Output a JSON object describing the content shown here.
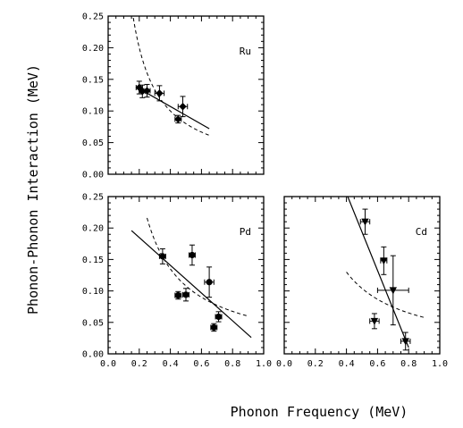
{
  "figure": {
    "ylabel": "Phonon-Phonon Interaction (MeV)",
    "xlabel": "Phonon Frequency (MeV)"
  },
  "chart_data": [
    {
      "type": "scatter",
      "label": "Ru",
      "marker": "diamond",
      "xlim": [
        0.0,
        1.0
      ],
      "ylim": [
        0.0,
        0.25
      ],
      "xticks": [],
      "yticks": [
        "0.00",
        "0.05",
        "0.10",
        "0.15",
        "0.20",
        "0.25"
      ],
      "points": [
        {
          "x": 0.2,
          "y": 0.137,
          "xerr": 0.02,
          "yerr": 0.01
        },
        {
          "x": 0.22,
          "y": 0.131,
          "xerr": 0.02,
          "yerr": 0.01
        },
        {
          "x": 0.25,
          "y": 0.132,
          "xerr": 0.02,
          "yerr": 0.01
        },
        {
          "x": 0.33,
          "y": 0.128,
          "xerr": 0.03,
          "yerr": 0.012
        },
        {
          "x": 0.45,
          "y": 0.087,
          "xerr": 0.02,
          "yerr": 0.006
        },
        {
          "x": 0.48,
          "y": 0.107,
          "xerr": 0.03,
          "yerr": 0.016
        }
      ],
      "fit_line": {
        "x": [
          0.18,
          0.65
        ],
        "y": [
          0.138,
          0.072
        ]
      },
      "dashed_curve": {
        "k": 0.04,
        "x_range": [
          0.15,
          0.65
        ]
      }
    },
    {
      "type": "scatter",
      "label": "Pd",
      "marker": "circle",
      "xlim": [
        0.0,
        1.0
      ],
      "ylim": [
        0.0,
        0.25
      ],
      "xticks": [
        "0.0",
        "0.2",
        "0.4",
        "0.6",
        "0.8",
        "1.0"
      ],
      "yticks": [
        "0.00",
        "0.05",
        "0.10",
        "0.15",
        "0.20",
        "0.25"
      ],
      "points": [
        {
          "x": 0.35,
          "y": 0.155,
          "xerr": 0.02,
          "yerr": 0.012
        },
        {
          "x": 0.45,
          "y": 0.093,
          "xerr": 0.02,
          "yerr": 0.006
        },
        {
          "x": 0.5,
          "y": 0.094,
          "xerr": 0.02,
          "yerr": 0.01
        },
        {
          "x": 0.54,
          "y": 0.157,
          "xerr": 0.02,
          "yerr": 0.016
        },
        {
          "x": 0.65,
          "y": 0.114,
          "xerr": 0.03,
          "yerr": 0.024
        },
        {
          "x": 0.68,
          "y": 0.042,
          "xerr": 0.02,
          "yerr": 0.006
        },
        {
          "x": 0.71,
          "y": 0.059,
          "xerr": 0.02,
          "yerr": 0.008
        }
      ],
      "fit_line": {
        "x": [
          0.15,
          0.92
        ],
        "y": [
          0.196,
          0.026
        ]
      },
      "dashed_curve": {
        "k": 0.054,
        "x_range": [
          0.25,
          0.9
        ]
      }
    },
    {
      "type": "scatter",
      "label": "Cd",
      "marker": "triangle-down",
      "xlim": [
        0.0,
        1.0
      ],
      "ylim": [
        0.0,
        0.25
      ],
      "xticks": [
        "0.0",
        "0.2",
        "0.4",
        "0.6",
        "0.8",
        "1.0"
      ],
      "yticks": [],
      "points": [
        {
          "x": 0.52,
          "y": 0.21,
          "xerr": 0.03,
          "yerr": 0.02
        },
        {
          "x": 0.58,
          "y": 0.052,
          "xerr": 0.03,
          "yerr": 0.012
        },
        {
          "x": 0.64,
          "y": 0.148,
          "xerr": 0.02,
          "yerr": 0.022
        },
        {
          "x": 0.7,
          "y": 0.101,
          "xerr": 0.1,
          "yerr": 0.055
        },
        {
          "x": 0.78,
          "y": 0.02,
          "xerr": 0.03,
          "yerr": 0.014
        }
      ],
      "fit_line": {
        "x": [
          0.4,
          0.8
        ],
        "y": [
          0.255,
          0.01
        ]
      },
      "dashed_curve": {
        "k": 0.052,
        "x_range": [
          0.4,
          0.9
        ]
      }
    }
  ]
}
